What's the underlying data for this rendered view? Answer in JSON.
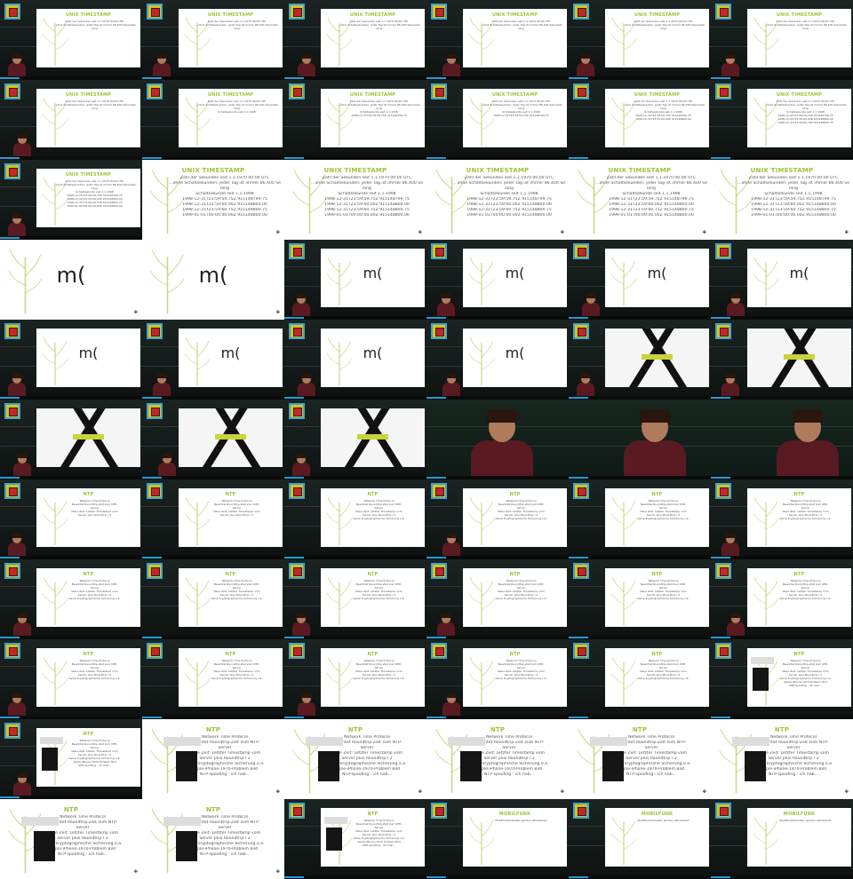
{
  "colors": {
    "accent_green": "#9cc43a",
    "progress_blue": "#1e9fd8",
    "slide_background": "#ffffff",
    "shirt": "#5a1a22"
  },
  "slides": {
    "unix_timestamp": {
      "title": "UNIX TIMESTAMP",
      "lines": [
        "Zahl der Sekunden seit 1.1.1970 00:00 UTC",
        "…ohne Schaltsekunden: jeder Tag ist immer 86.400 Sekunden",
        "lang",
        "Schaltsekunde seit 1.1.1998",
        "1998-12-31T23:59:59.75Z  915148799.75",
        "1998-12-31T23:59:60.00Z  915148800.00",
        "1998-12-31T23:59:60.75Z  915148800.75",
        "1999-01-01T00:00:00.00Z  915148800.00"
      ]
    },
    "mood": {
      "text": "m("
    },
    "ntp": {
      "title": "NTP",
      "lines": [
        "Network Time Protocol",
        "Beachtet Roundtrip-Zeit zum NTP-",
        "Server",
        "Neue Zeit: Letzter Timestamp vom",
        "Server plus Roundtrip / 2",
        "Keine kryptographische Sicherung o.ä.",
        "Apple-iPhone-1970-Problem Bild",
        "NTP-spoofing - ich hab..."
      ]
    },
    "mobilfunk": {
      "title": "MOBILFUNK",
      "lines": [
        "Mobilfunkbetreiber werden aktualisiert"
      ]
    }
  },
  "frames": [
    {
      "kind": "lecture",
      "slide": "unix_timestamp",
      "lines": 3,
      "person": "small"
    },
    {
      "kind": "lecture",
      "slide": "unix_timestamp",
      "lines": 3,
      "person": "small"
    },
    {
      "kind": "lecture",
      "slide": "unix_timestamp",
      "lines": 3,
      "person": "small"
    },
    {
      "kind": "lecture",
      "slide": "unix_timestamp",
      "lines": 3,
      "person": "small"
    },
    {
      "kind": "lecture",
      "slide": "unix_timestamp",
      "lines": 3,
      "person": "small"
    },
    {
      "kind": "lecture",
      "slide": "unix_timestamp",
      "lines": 3,
      "person": "small"
    },
    {
      "kind": "lecture",
      "slide": "unix_timestamp",
      "lines": 3,
      "person": "small"
    },
    {
      "kind": "lecture",
      "slide": "unix_timestamp",
      "lines": 4,
      "person": "none"
    },
    {
      "kind": "lecture",
      "slide": "unix_timestamp",
      "lines": 5,
      "person": "none"
    },
    {
      "kind": "lecture",
      "slide": "unix_timestamp",
      "lines": 5,
      "person": "none"
    },
    {
      "kind": "lecture",
      "slide": "unix_timestamp",
      "lines": 6,
      "person": "none"
    },
    {
      "kind": "lecture",
      "slide": "unix_timestamp",
      "lines": 7,
      "person": "none"
    },
    {
      "kind": "lecture",
      "slide": "unix_timestamp",
      "lines": 8,
      "person": "small"
    },
    {
      "kind": "full",
      "slide": "unix_timestamp",
      "lines": 8
    },
    {
      "kind": "full",
      "slide": "unix_timestamp",
      "lines": 8
    },
    {
      "kind": "full",
      "slide": "unix_timestamp",
      "lines": 8
    },
    {
      "kind": "full",
      "slide": "unix_timestamp",
      "lines": 8
    },
    {
      "kind": "full",
      "slide": "unix_timestamp",
      "lines": 8
    },
    {
      "kind": "full",
      "slide": "mood"
    },
    {
      "kind": "full",
      "slide": "mood"
    },
    {
      "kind": "lecture",
      "slide": "mood",
      "person": "small"
    },
    {
      "kind": "lecture",
      "slide": "mood",
      "person": "small"
    },
    {
      "kind": "lecture",
      "slide": "mood",
      "person": "small"
    },
    {
      "kind": "lecture",
      "slide": "mood",
      "person": "small"
    },
    {
      "kind": "lecture",
      "slide": "mood",
      "person": "small"
    },
    {
      "kind": "lecture",
      "slide": "mood",
      "person": "small"
    },
    {
      "kind": "lecture",
      "slide": "mood",
      "person": "small"
    },
    {
      "kind": "lecture",
      "slide": "mood",
      "person": "small"
    },
    {
      "kind": "lecture",
      "slide": "xphoto",
      "person": "small"
    },
    {
      "kind": "lecture",
      "slide": "xphoto",
      "person": "small"
    },
    {
      "kind": "lecture",
      "slide": "xphoto",
      "person": "small"
    },
    {
      "kind": "lecture",
      "slide": "xphoto",
      "person": "small"
    },
    {
      "kind": "lecture",
      "slide": "xphoto",
      "person": "small"
    },
    {
      "kind": "closeup"
    },
    {
      "kind": "closeup"
    },
    {
      "kind": "closeup"
    },
    {
      "kind": "lecture",
      "slide": "ntp",
      "lines": 5,
      "person": "small"
    },
    {
      "kind": "lecture",
      "slide": "ntp",
      "lines": 5,
      "person": "none"
    },
    {
      "kind": "lecture",
      "slide": "ntp",
      "lines": 6,
      "person": "none"
    },
    {
      "kind": "lecture",
      "slide": "ntp",
      "lines": 6,
      "person": "small"
    },
    {
      "kind": "lecture",
      "slide": "ntp",
      "lines": 6,
      "person": "none"
    },
    {
      "kind": "lecture",
      "slide": "ntp",
      "lines": 6,
      "person": "small"
    },
    {
      "kind": "lecture",
      "slide": "ntp",
      "lines": 6,
      "person": "small"
    },
    {
      "kind": "lecture",
      "slide": "ntp",
      "lines": 6,
      "person": "none"
    },
    {
      "kind": "lecture",
      "slide": "ntp",
      "lines": 6,
      "person": "small"
    },
    {
      "kind": "lecture",
      "slide": "ntp",
      "lines": 6,
      "person": "small"
    },
    {
      "kind": "lecture",
      "slide": "ntp",
      "lines": 6,
      "person": "none"
    },
    {
      "kind": "lecture",
      "slide": "ntp",
      "lines": 6,
      "person": "small"
    },
    {
      "kind": "lecture",
      "slide": "ntp",
      "lines": 6,
      "person": "small"
    },
    {
      "kind": "lecture",
      "slide": "ntp",
      "lines": 6,
      "person": "none"
    },
    {
      "kind": "lecture",
      "slide": "ntp",
      "lines": 6,
      "person": "small"
    },
    {
      "kind": "lecture",
      "slide": "ntp",
      "lines": 6,
      "person": "small"
    },
    {
      "kind": "lecture",
      "slide": "ntp",
      "lines": 6,
      "person": "none"
    },
    {
      "kind": "lecture",
      "slide": "ntp",
      "lines": 8,
      "phone": true,
      "person": "none"
    },
    {
      "kind": "lecture",
      "slide": "ntp",
      "lines": 8,
      "phone": true,
      "person": "small"
    },
    {
      "kind": "full",
      "slide": "ntp",
      "lines": 8,
      "phone": true
    },
    {
      "kind": "full",
      "slide": "ntp",
      "lines": 8,
      "phone": true
    },
    {
      "kind": "full",
      "slide": "ntp",
      "lines": 8,
      "phone": true
    },
    {
      "kind": "full",
      "slide": "ntp",
      "lines": 8,
      "phone": true
    },
    {
      "kind": "full",
      "slide": "ntp",
      "lines": 8,
      "phone": true
    },
    {
      "kind": "full",
      "slide": "ntp",
      "lines": 8,
      "phone": true
    },
    {
      "kind": "full",
      "slide": "ntp",
      "lines": 8,
      "phone": true
    },
    {
      "kind": "lecture",
      "slide": "ntp",
      "lines": 8,
      "phone": true,
      "person": "none"
    },
    {
      "kind": "lecture",
      "slide": "mobilfunk",
      "lines": 1,
      "person": "none"
    },
    {
      "kind": "lecture",
      "slide": "mobilfunk",
      "lines": 1,
      "person": "none"
    },
    {
      "kind": "lecture",
      "slide": "mobilfunk",
      "lines": 1,
      "person": "none"
    }
  ]
}
